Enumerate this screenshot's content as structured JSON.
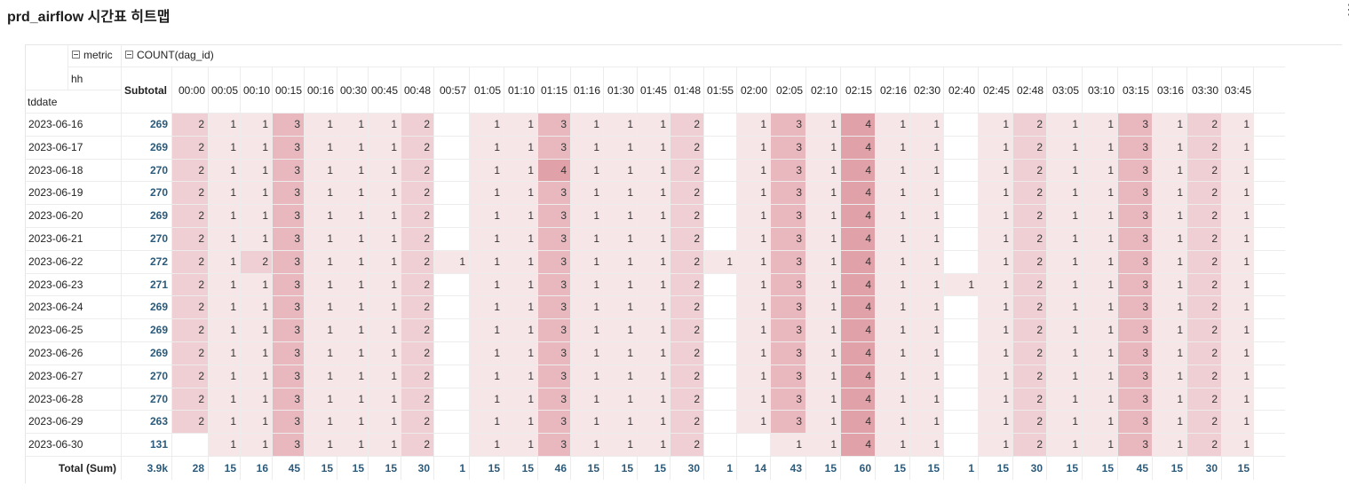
{
  "title": "prd_airflow 시간표 히트맵",
  "menu_icon": "kebab-menu-icon",
  "header": {
    "metric_label": "metric",
    "metric_name": "COUNT(dag_id)",
    "col_dim": "hh",
    "row_dim": "tddate",
    "subtotal": "Subtotal",
    "total_label": "Total (Sum)"
  },
  "colors": {
    "heat": "#e0a8ae",
    "value": "#2b5a7a",
    "grid": "#ececec"
  },
  "columns": [
    "00:00",
    "00:05",
    "00:10",
    "00:15",
    "00:16",
    "00:30",
    "00:45",
    "00:48",
    "00:57",
    "01:05",
    "01:10",
    "01:15",
    "01:16",
    "01:30",
    "01:45",
    "01:48",
    "01:55",
    "02:00",
    "02:05",
    "02:10",
    "02:15",
    "02:16",
    "02:30",
    "02:40",
    "02:45",
    "02:48",
    "03:05",
    "03:10",
    "03:15",
    "03:16",
    "03:30",
    "03:45",
    ""
  ],
  "rows": [
    {
      "date": "2023-06-16",
      "subtotal": "269",
      "values": [
        2,
        1,
        1,
        3,
        1,
        1,
        1,
        2,
        null,
        1,
        1,
        3,
        1,
        1,
        1,
        2,
        null,
        1,
        3,
        1,
        4,
        1,
        1,
        null,
        1,
        2,
        1,
        1,
        3,
        1,
        2,
        1,
        null
      ]
    },
    {
      "date": "2023-06-17",
      "subtotal": "269",
      "values": [
        2,
        1,
        1,
        3,
        1,
        1,
        1,
        2,
        null,
        1,
        1,
        3,
        1,
        1,
        1,
        2,
        null,
        1,
        3,
        1,
        4,
        1,
        1,
        null,
        1,
        2,
        1,
        1,
        3,
        1,
        2,
        1,
        null
      ]
    },
    {
      "date": "2023-06-18",
      "subtotal": "270",
      "values": [
        2,
        1,
        1,
        3,
        1,
        1,
        1,
        2,
        null,
        1,
        1,
        4,
        1,
        1,
        1,
        2,
        null,
        1,
        3,
        1,
        4,
        1,
        1,
        null,
        1,
        2,
        1,
        1,
        3,
        1,
        2,
        1,
        null
      ]
    },
    {
      "date": "2023-06-19",
      "subtotal": "270",
      "values": [
        2,
        1,
        1,
        3,
        1,
        1,
        1,
        2,
        null,
        1,
        1,
        3,
        1,
        1,
        1,
        2,
        null,
        1,
        3,
        1,
        4,
        1,
        1,
        null,
        1,
        2,
        1,
        1,
        3,
        1,
        2,
        1,
        null
      ]
    },
    {
      "date": "2023-06-20",
      "subtotal": "269",
      "values": [
        2,
        1,
        1,
        3,
        1,
        1,
        1,
        2,
        null,
        1,
        1,
        3,
        1,
        1,
        1,
        2,
        null,
        1,
        3,
        1,
        4,
        1,
        1,
        null,
        1,
        2,
        1,
        1,
        3,
        1,
        2,
        1,
        null
      ]
    },
    {
      "date": "2023-06-21",
      "subtotal": "270",
      "values": [
        2,
        1,
        1,
        3,
        1,
        1,
        1,
        2,
        null,
        1,
        1,
        3,
        1,
        1,
        1,
        2,
        null,
        1,
        3,
        1,
        4,
        1,
        1,
        null,
        1,
        2,
        1,
        1,
        3,
        1,
        2,
        1,
        null
      ]
    },
    {
      "date": "2023-06-22",
      "subtotal": "272",
      "values": [
        2,
        1,
        2,
        3,
        1,
        1,
        1,
        2,
        1,
        1,
        1,
        3,
        1,
        1,
        1,
        2,
        1,
        1,
        3,
        1,
        4,
        1,
        1,
        null,
        1,
        2,
        1,
        1,
        3,
        1,
        2,
        1,
        null
      ]
    },
    {
      "date": "2023-06-23",
      "subtotal": "271",
      "values": [
        2,
        1,
        1,
        3,
        1,
        1,
        1,
        2,
        null,
        1,
        1,
        3,
        1,
        1,
        1,
        2,
        null,
        1,
        3,
        1,
        4,
        1,
        1,
        1,
        1,
        2,
        1,
        1,
        3,
        1,
        2,
        1,
        null
      ]
    },
    {
      "date": "2023-06-24",
      "subtotal": "269",
      "values": [
        2,
        1,
        1,
        3,
        1,
        1,
        1,
        2,
        null,
        1,
        1,
        3,
        1,
        1,
        1,
        2,
        null,
        1,
        3,
        1,
        4,
        1,
        1,
        null,
        1,
        2,
        1,
        1,
        3,
        1,
        2,
        1,
        null
      ]
    },
    {
      "date": "2023-06-25",
      "subtotal": "269",
      "values": [
        2,
        1,
        1,
        3,
        1,
        1,
        1,
        2,
        null,
        1,
        1,
        3,
        1,
        1,
        1,
        2,
        null,
        1,
        3,
        1,
        4,
        1,
        1,
        null,
        1,
        2,
        1,
        1,
        3,
        1,
        2,
        1,
        null
      ]
    },
    {
      "date": "2023-06-26",
      "subtotal": "269",
      "values": [
        2,
        1,
        1,
        3,
        1,
        1,
        1,
        2,
        null,
        1,
        1,
        3,
        1,
        1,
        1,
        2,
        null,
        1,
        3,
        1,
        4,
        1,
        1,
        null,
        1,
        2,
        1,
        1,
        3,
        1,
        2,
        1,
        null
      ]
    },
    {
      "date": "2023-06-27",
      "subtotal": "270",
      "values": [
        2,
        1,
        1,
        3,
        1,
        1,
        1,
        2,
        null,
        1,
        1,
        3,
        1,
        1,
        1,
        2,
        null,
        1,
        3,
        1,
        4,
        1,
        1,
        null,
        1,
        2,
        1,
        1,
        3,
        1,
        2,
        1,
        null
      ]
    },
    {
      "date": "2023-06-28",
      "subtotal": "270",
      "values": [
        2,
        1,
        1,
        3,
        1,
        1,
        1,
        2,
        null,
        1,
        1,
        3,
        1,
        1,
        1,
        2,
        null,
        1,
        3,
        1,
        4,
        1,
        1,
        null,
        1,
        2,
        1,
        1,
        3,
        1,
        2,
        1,
        null
      ]
    },
    {
      "date": "2023-06-29",
      "subtotal": "263",
      "values": [
        2,
        1,
        1,
        3,
        1,
        1,
        1,
        2,
        null,
        1,
        1,
        3,
        1,
        1,
        1,
        2,
        null,
        1,
        3,
        1,
        4,
        1,
        1,
        null,
        1,
        2,
        1,
        1,
        3,
        1,
        2,
        1,
        null
      ]
    },
    {
      "date": "2023-06-30",
      "subtotal": "131",
      "values": [
        null,
        1,
        1,
        3,
        1,
        1,
        1,
        2,
        null,
        1,
        1,
        3,
        1,
        1,
        1,
        2,
        null,
        null,
        1,
        1,
        4,
        1,
        1,
        null,
        1,
        2,
        1,
        1,
        3,
        1,
        2,
        1,
        null
      ]
    }
  ],
  "totals": {
    "subtotal": "3.9k",
    "values": [
      "28",
      "15",
      "16",
      "45",
      "15",
      "15",
      "15",
      "30",
      "1",
      "15",
      "15",
      "46",
      "15",
      "15",
      "15",
      "30",
      "1",
      "14",
      "43",
      "15",
      "60",
      "15",
      "15",
      "1",
      "15",
      "30",
      "15",
      "15",
      "45",
      "15",
      "30",
      "15",
      ""
    ]
  }
}
